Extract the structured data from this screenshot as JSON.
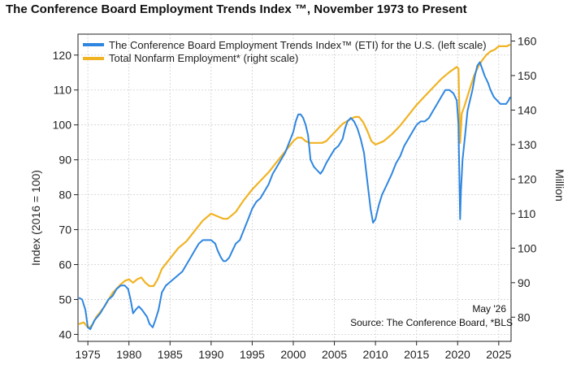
{
  "page": {
    "title": "The Conference Board Employment Trends Index ™, November 1973 to Present"
  },
  "chart_data": {
    "type": "line",
    "title": "The Conference Board Employment Trends Index ™, November 1973 to Present",
    "xlabel": "",
    "ylabel_left": "Index (2016 = 100)",
    "ylabel_right": "Million",
    "xlim": [
      1973.8,
      2026.5
    ],
    "ylim_left": [
      38,
      126
    ],
    "ylim_right": [
      73,
      162
    ],
    "x_ticks": [
      "1975",
      "1980",
      "1985",
      "1990",
      "1995",
      "2000",
      "2005",
      "2010",
      "2015",
      "2020",
      "2025"
    ],
    "y_ticks_left": [
      "40",
      "50",
      "60",
      "70",
      "80",
      "90",
      "100",
      "110",
      "120"
    ],
    "y_ticks_right": [
      "80",
      "90",
      "100",
      "110",
      "120",
      "130",
      "140",
      "150",
      "160"
    ],
    "grid": true,
    "legend_position": "top-left",
    "annotation_date": "May '26",
    "source": "Source: The Conference Board, *BLS",
    "colors": {
      "eti": "#2f86e0",
      "nonfarm": "#f0b323"
    },
    "series": [
      {
        "name": "The Conference Board Employment Trends Index™ (ETI) for the U.S. (left scale)",
        "axis": "left",
        "x": [
          1973.9,
          1974.3,
          1974.7,
          1975.0,
          1975.3,
          1975.8,
          1976.5,
          1977.0,
          1977.5,
          1978.0,
          1978.5,
          1979.0,
          1979.5,
          1979.9,
          1980.2,
          1980.5,
          1980.8,
          1981.2,
          1981.6,
          1981.9,
          1982.2,
          1982.5,
          1982.9,
          1983.2,
          1983.6,
          1984.0,
          1984.5,
          1985.0,
          1985.5,
          1986.0,
          1986.5,
          1987.0,
          1987.5,
          1988.0,
          1988.5,
          1989.0,
          1989.5,
          1990.0,
          1990.5,
          1990.8,
          1991.2,
          1991.5,
          1991.8,
          1992.2,
          1992.6,
          1993.0,
          1993.5,
          1994.0,
          1994.5,
          1995.0,
          1995.5,
          1996.0,
          1996.5,
          1997.0,
          1997.5,
          1998.0,
          1998.5,
          1999.0,
          1999.5,
          2000.0,
          2000.3,
          2000.6,
          2000.9,
          2001.2,
          2001.5,
          2001.8,
          2002.1,
          2002.5,
          2002.9,
          2003.3,
          2003.6,
          2004.0,
          2004.5,
          2005.0,
          2005.5,
          2006.0,
          2006.3,
          2006.6,
          2007.0,
          2007.4,
          2007.8,
          2008.2,
          2008.6,
          2009.0,
          2009.4,
          2009.7,
          2010.0,
          2010.4,
          2010.8,
          2011.2,
          2011.6,
          2012.0,
          2012.5,
          2013.0,
          2013.5,
          2014.0,
          2014.5,
          2015.0,
          2015.5,
          2016.0,
          2016.5,
          2017.0,
          2017.5,
          2018.0,
          2018.5,
          2019.0,
          2019.5,
          2019.9,
          2020.1,
          2020.3,
          2020.4,
          2020.6,
          2020.9,
          2021.2,
          2021.5,
          2021.8,
          2022.1,
          2022.4,
          2022.7,
          2023.0,
          2023.3,
          2023.7,
          2024.0,
          2024.4,
          2024.8,
          2025.2,
          2025.6,
          2025.9,
          2026.2,
          2026.4
        ],
        "values": [
          50.5,
          50,
          47,
          42,
          41.5,
          44,
          46,
          48,
          50,
          51,
          53,
          54,
          54,
          53,
          50,
          46,
          47,
          48,
          47,
          46,
          45,
          43,
          42,
          44,
          47,
          52,
          54,
          55,
          56,
          57,
          58,
          60,
          62,
          64,
          66,
          67,
          67,
          67,
          66,
          64,
          62,
          61,
          61,
          62,
          64,
          66,
          67,
          70,
          73,
          76,
          78,
          79,
          81,
          83,
          86,
          88,
          90,
          92,
          95,
          98,
          101,
          103,
          103,
          102,
          100,
          97,
          90,
          88,
          87,
          86,
          87,
          89,
          91,
          93,
          94,
          96,
          99,
          101,
          102,
          101,
          99,
          96,
          92,
          84,
          76,
          72,
          73,
          77,
          80,
          82,
          84,
          86,
          89,
          91,
          94,
          96,
          98,
          100,
          101,
          101,
          102,
          104,
          106,
          108,
          110,
          110,
          109,
          107,
          100,
          73,
          81,
          90,
          97,
          104,
          107,
          110,
          114,
          117,
          118,
          116,
          114,
          112,
          110,
          108,
          107,
          106,
          106,
          106,
          107,
          108
        ]
      },
      {
        "name": "Total Nonfarm Employment* (right scale)",
        "axis": "right",
        "x": [
          1973.9,
          1974.5,
          1975.0,
          1975.2,
          1975.6,
          1976.0,
          1977.0,
          1978.0,
          1979.0,
          1979.5,
          1980.0,
          1980.5,
          1981.0,
          1981.5,
          1982.0,
          1982.5,
          1983.0,
          1983.5,
          1984.0,
          1985.0,
          1986.0,
          1987.0,
          1988.0,
          1989.0,
          1990.0,
          1990.5,
          1991.0,
          1991.5,
          1992.0,
          1993.0,
          1994.0,
          1995.0,
          1996.0,
          1997.0,
          1998.0,
          1999.0,
          2000.0,
          2000.5,
          2001.0,
          2001.5,
          2002.0,
          2002.5,
          2003.0,
          2003.5,
          2004.0,
          2005.0,
          2006.0,
          2007.0,
          2007.5,
          2008.0,
          2008.5,
          2009.0,
          2009.5,
          2010.0,
          2010.5,
          2011.0,
          2012.0,
          2013.0,
          2014.0,
          2015.0,
          2016.0,
          2017.0,
          2018.0,
          2019.0,
          2019.9,
          2020.1,
          2020.3,
          2020.5,
          2020.8,
          2021.2,
          2021.6,
          2022.0,
          2022.5,
          2023.0,
          2023.5,
          2024.0,
          2024.5,
          2025.0,
          2025.5,
          2026.0,
          2026.4
        ],
        "values": [
          78,
          78.5,
          77,
          77,
          78,
          80,
          83,
          87,
          89.5,
          90.5,
          91,
          90,
          91,
          91.5,
          90,
          89,
          89,
          91,
          94,
          97,
          100,
          102,
          105,
          108,
          110,
          109.5,
          109,
          108.5,
          108.5,
          110.5,
          114,
          117,
          119.5,
          122,
          125,
          128,
          131,
          132,
          132,
          131,
          130.5,
          130.5,
          130.5,
          130.5,
          131,
          133.5,
          136,
          137.5,
          138,
          138,
          136.5,
          134,
          131,
          130,
          130.5,
          131,
          133,
          135.5,
          138.5,
          141.5,
          144,
          146.5,
          149,
          151,
          152.5,
          152,
          130.5,
          139,
          141,
          144,
          147,
          150,
          152.5,
          154.5,
          156,
          157,
          157.5,
          158.5,
          158.5,
          158.5,
          159
        ]
      }
    ]
  }
}
